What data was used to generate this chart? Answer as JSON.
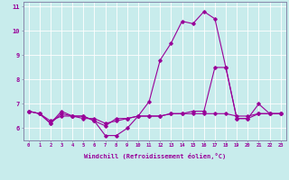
{
  "xlabel": "Windchill (Refroidissement éolien,°C)",
  "background_color": "#c8ecec",
  "line_color": "#990099",
  "grid_color": "#ffffff",
  "xlim": [
    -0.5,
    23.5
  ],
  "ylim": [
    5.5,
    11.2
  ],
  "xticks": [
    0,
    1,
    2,
    3,
    4,
    5,
    6,
    7,
    8,
    9,
    10,
    11,
    12,
    13,
    14,
    15,
    16,
    17,
    18,
    19,
    20,
    21,
    22,
    23
  ],
  "yticks": [
    6,
    7,
    8,
    9,
    10,
    11
  ],
  "series": [
    {
      "x": [
        0,
        1,
        2,
        3,
        4,
        5,
        6,
        7,
        8,
        9,
        10,
        11,
        12,
        13,
        14,
        15,
        16,
        17,
        18,
        19,
        20,
        21,
        22,
        23
      ],
      "y": [
        6.7,
        6.6,
        6.2,
        6.7,
        6.5,
        6.5,
        6.3,
        5.7,
        5.7,
        6.0,
        6.5,
        7.1,
        8.8,
        9.5,
        10.4,
        10.3,
        10.8,
        10.5,
        8.5,
        6.4,
        6.4,
        7.0,
        6.6,
        6.6
      ]
    },
    {
      "x": [
        0,
        1,
        2,
        3,
        4,
        5,
        6,
        7,
        8,
        9,
        10,
        11,
        12,
        13,
        14,
        15,
        16,
        17,
        18,
        19,
        20,
        21,
        22,
        23
      ],
      "y": [
        6.7,
        6.6,
        6.2,
        6.6,
        6.5,
        6.5,
        6.3,
        6.1,
        6.4,
        6.4,
        6.5,
        6.5,
        6.5,
        6.6,
        6.6,
        6.7,
        6.7,
        8.5,
        8.5,
        6.4,
        6.4,
        6.6,
        6.6,
        6.6
      ]
    },
    {
      "x": [
        0,
        1,
        2,
        3,
        4,
        5,
        6,
        7,
        8,
        9,
        10,
        11,
        12,
        13,
        14,
        15,
        16,
        17,
        18,
        19,
        20,
        21,
        22,
        23
      ],
      "y": [
        6.7,
        6.6,
        6.3,
        6.5,
        6.5,
        6.4,
        6.4,
        6.2,
        6.3,
        6.4,
        6.5,
        6.5,
        6.5,
        6.6,
        6.6,
        6.6,
        6.6,
        6.6,
        6.6,
        6.5,
        6.5,
        6.6,
        6.6,
        6.6
      ]
    }
  ]
}
